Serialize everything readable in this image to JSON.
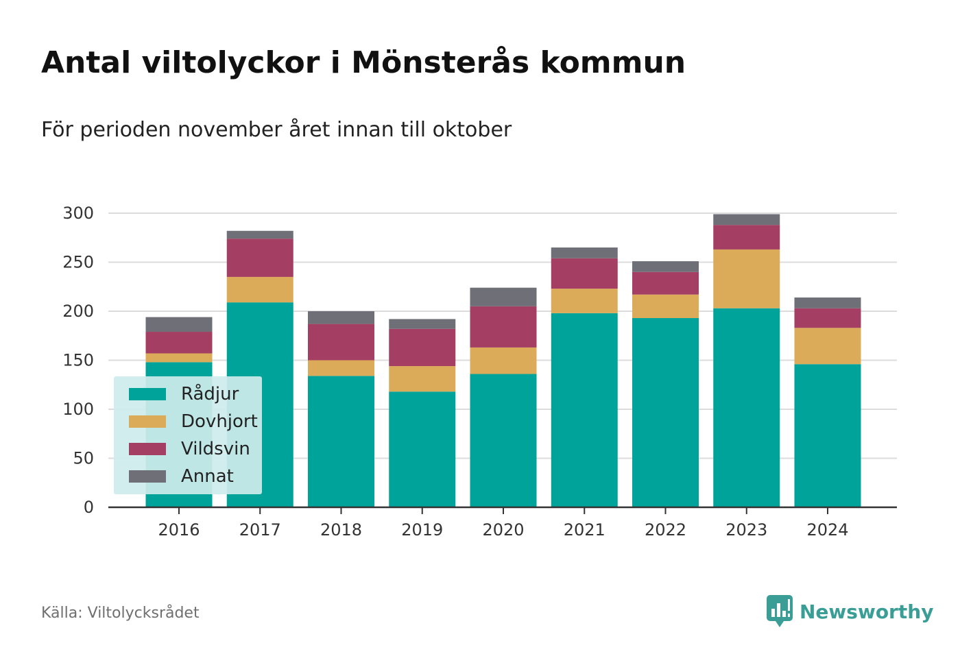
{
  "title": "Antal viltolyckor i Mönsterås kommun",
  "subtitle": "För perioden november året innan till oktober",
  "source": "Källa: Viltolycksrådet",
  "brand": {
    "name": "Newsworthy",
    "icon": "newsworthy-logo-icon",
    "color": "#3a9e96"
  },
  "chart_data": {
    "type": "bar",
    "stacked": true,
    "categories": [
      "2016",
      "2017",
      "2018",
      "2019",
      "2020",
      "2021",
      "2022",
      "2023",
      "2024"
    ],
    "series": [
      {
        "name": "Rådjur",
        "color": "#00a39a",
        "values": [
          148,
          209,
          134,
          118,
          136,
          198,
          193,
          203,
          146
        ]
      },
      {
        "name": "Dovhjort",
        "color": "#dbab5a",
        "values": [
          9,
          26,
          16,
          26,
          27,
          25,
          24,
          60,
          37
        ]
      },
      {
        "name": "Vildsvin",
        "color": "#a43f63",
        "values": [
          22,
          39,
          37,
          38,
          42,
          31,
          23,
          25,
          20
        ]
      },
      {
        "name": "Annat",
        "color": "#6f6f77",
        "values": [
          15,
          8,
          13,
          10,
          19,
          11,
          11,
          11,
          11
        ]
      }
    ],
    "ylim": [
      0,
      300
    ],
    "yticks": [
      0,
      50,
      100,
      150,
      200,
      250,
      300
    ],
    "grid": true,
    "legend_position": "bottom-left"
  }
}
